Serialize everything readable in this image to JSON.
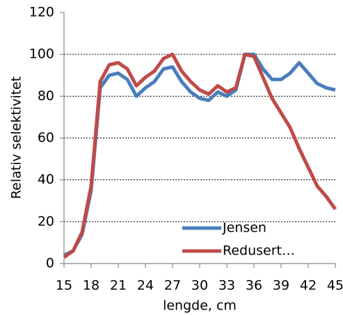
{
  "chart_data": {
    "type": "line",
    "x_label": "lengde, cm",
    "y_label": "Relativ selektivitet",
    "x": [
      15,
      16,
      17,
      18,
      19,
      20,
      21,
      22,
      23,
      24,
      25,
      26,
      27,
      28,
      29,
      30,
      31,
      32,
      33,
      34,
      35,
      36,
      37,
      38,
      39,
      40,
      41,
      42,
      43,
      44,
      45
    ],
    "series": [
      {
        "name": "Jensen",
        "color": "#4a7ebb",
        "values": [
          4,
          6,
          14,
          35,
          84,
          90,
          91,
          88,
          80,
          84,
          87,
          93,
          94,
          87,
          82,
          79,
          78,
          82,
          80,
          83,
          100,
          100,
          93,
          88,
          88,
          91,
          96,
          91,
          86,
          84,
          83
        ]
      },
      {
        "name": "Redusert…",
        "color": "#be4b48",
        "values": [
          3,
          6,
          15,
          37,
          87,
          95,
          96,
          93,
          85,
          89,
          92,
          98,
          100,
          92,
          87,
          83,
          81,
          85,
          82,
          84,
          100,
          99,
          89,
          79,
          72,
          65,
          55,
          46,
          37,
          32,
          26
        ]
      }
    ],
    "xlim": [
      15,
      45
    ],
    "xticks": [
      15,
      18,
      21,
      24,
      27,
      30,
      33,
      36,
      39,
      42,
      45
    ],
    "ylim": [
      0,
      120
    ],
    "yticks": [
      0,
      20,
      40,
      60,
      80,
      100,
      120
    ],
    "grid": true,
    "legend": "bottom-right"
  }
}
